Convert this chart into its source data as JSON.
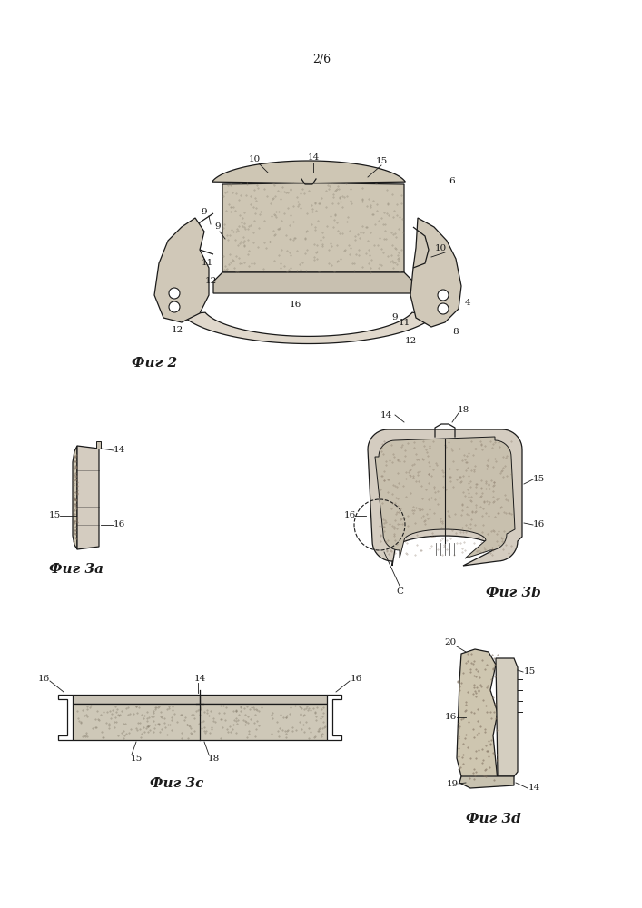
{
  "title": "2/6",
  "fig2_label": "Фиг 2",
  "fig3a_label": "Фиг 3a",
  "fig3b_label": "Фиг 3b",
  "fig3c_label": "Фиг 3c",
  "fig3d_label": "Фиг 3d",
  "bg_color": "#ffffff",
  "line_color": "#1a1a1a",
  "pad_fill": "#d4cab8",
  "bracket_fill": "#c8c0b0",
  "font_size_title": 9,
  "font_size_label": 10,
  "font_size_annot": 7.5,
  "fig_width": 7.07,
  "fig_height": 10.0
}
